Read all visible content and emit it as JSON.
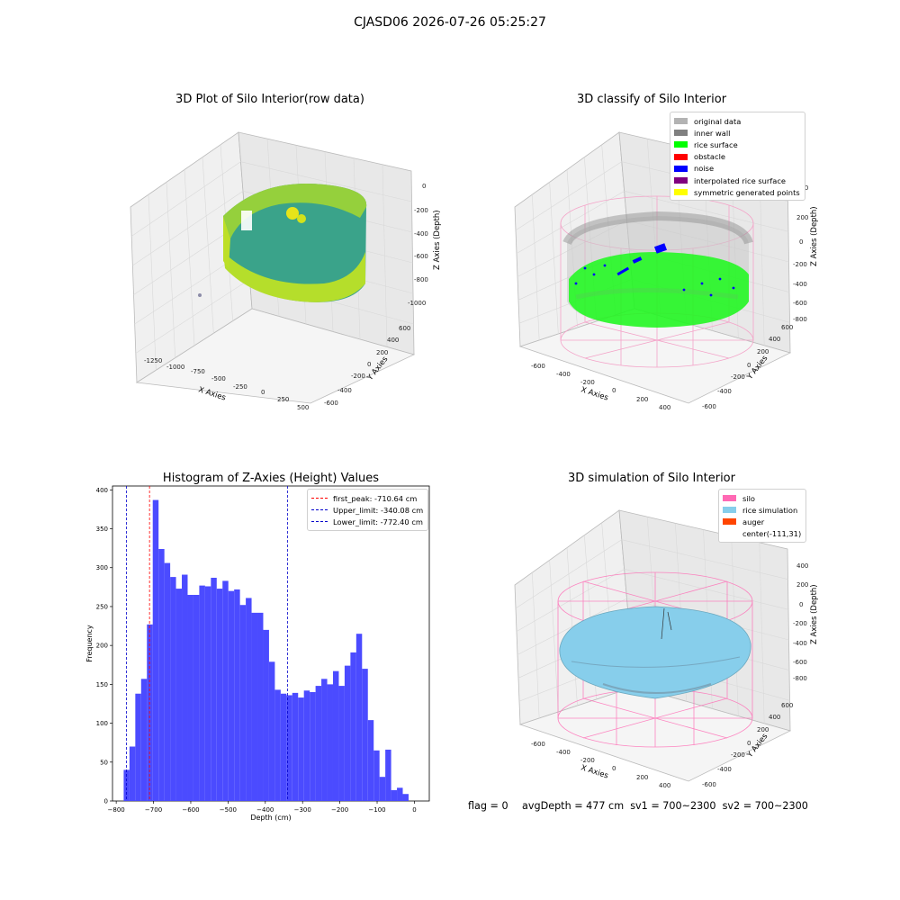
{
  "suptitle": "CJASD06 2026-07-26 05:25:27",
  "colors": {
    "histogram_bar": "#4b4bff",
    "first_peak_line": "#ff0000",
    "limit_line": "#0000cc",
    "pane": "#f2f2f2",
    "grid": "#d9d9d9"
  },
  "panel_raw": {
    "title": "3D Plot of Silo Interior(row data)",
    "xlabel": "X Axies",
    "ylabel": "Y Axies",
    "zlabel": "Z Axies (Depth)",
    "xticks": [
      "-1250",
      "-1000",
      "-750",
      "-500",
      "-250",
      "0",
      "250",
      "500"
    ],
    "yticks": [
      "600",
      "400",
      "200",
      "0",
      "-200",
      "-400",
      "-600"
    ],
    "zticks": [
      "0",
      "-200",
      "-400",
      "-600",
      "-800",
      "-1000"
    ]
  },
  "panel_classify": {
    "title": "3D classify of Silo Interior",
    "xlabel": "X Axies",
    "ylabel": "Y Axies",
    "zlabel": "Z Axies (Depth)",
    "xticks": [
      "-600",
      "-400",
      "-200",
      "0",
      "200",
      "400"
    ],
    "yticks": [
      "600",
      "400",
      "200",
      "0",
      "-200",
      "-400",
      "-600"
    ],
    "zticks": [
      "400",
      "200",
      "0",
      "-200",
      "-400",
      "-600",
      "-800"
    ],
    "legend": [
      {
        "label": "original data",
        "color": "#b3b3b3"
      },
      {
        "label": "inner wall",
        "color": "#808080"
      },
      {
        "label": "rice surface",
        "color": "#00ff00"
      },
      {
        "label": "obstacle",
        "color": "#ff0000"
      },
      {
        "label": "noise",
        "color": "#0000ff"
      },
      {
        "label": "interpolated rice surface",
        "color": "#800080"
      },
      {
        "label": "symmetric generated points",
        "color": "#ffff00"
      }
    ]
  },
  "panel_sim": {
    "title": "3D simulation of Silo Interior",
    "xlabel": "X Axies",
    "ylabel": "Y Axies",
    "zlabel": "Z Axies (Depth)",
    "xticks": [
      "-600",
      "-400",
      "-200",
      "0",
      "200",
      "400"
    ],
    "yticks": [
      "600",
      "400",
      "200",
      "0",
      "-200",
      "-400",
      "-600"
    ],
    "zticks": [
      "400",
      "200",
      "0",
      "-200",
      "-400",
      "-600",
      "-800"
    ],
    "legend": [
      {
        "label": "silo",
        "color": "#ff69b4"
      },
      {
        "label": "rice simulation",
        "color": "#87ceeb"
      },
      {
        "label": "auger",
        "color": "#ff4500"
      },
      {
        "label": "center(-111,31)",
        "color": "none"
      }
    ]
  },
  "chart_data": {
    "type": "bar",
    "title": "Histogram of Z-Axies (Height) Values",
    "xlabel": "Depth (cm)",
    "ylabel": "Frequency",
    "xlim": [
      -810,
      40
    ],
    "ylim": [
      0,
      405
    ],
    "xticks": [
      -800,
      -700,
      -600,
      -500,
      -400,
      -300,
      -200,
      -100,
      0
    ],
    "yticks": [
      0,
      50,
      100,
      150,
      200,
      250,
      300,
      350,
      400
    ],
    "bin_start": -780,
    "bin_width": 15.6,
    "values": [
      40,
      70,
      138,
      157,
      227,
      387,
      324,
      306,
      288,
      273,
      291,
      265,
      265,
      277,
      276,
      287,
      273,
      283,
      270,
      272,
      252,
      261,
      242,
      242,
      220,
      179,
      143,
      138,
      136,
      139,
      133,
      142,
      140,
      148,
      157,
      150,
      167,
      148,
      174,
      191,
      215,
      170,
      104,
      65,
      31,
      66,
      14,
      17,
      9
    ],
    "lines": [
      {
        "label": "first_peak: -710.64 cm",
        "value": -710.64,
        "color": "#ff0000"
      },
      {
        "label": "Upper_limit: -340.08 cm",
        "value": -340.08,
        "color": "#0000cc"
      },
      {
        "label": "Lower_limit: -772.40 cm",
        "value": -772.4,
        "color": "#0000cc"
      }
    ]
  },
  "footer": {
    "flag": "flag = 0",
    "avg": "avgDepth = 477 cm  sv1 = 700~2300  sv2 = 700~2300"
  }
}
